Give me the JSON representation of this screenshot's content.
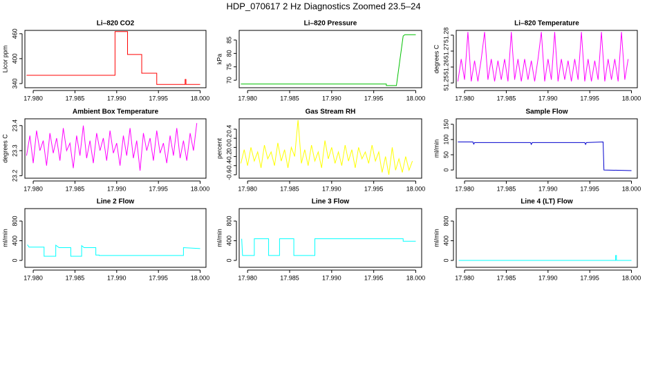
{
  "title": "HDP_070617  2 Hz Diagnostics Zoomed 23.5–24",
  "chart_data": [
    {
      "type": "line",
      "title": "Li–820 CO2",
      "ylabel": "Licor ppm",
      "color": "#ff0000",
      "x": [
        17.9792,
        17.9898,
        17.9898,
        17.9913,
        17.9913,
        17.993,
        17.993,
        17.9948,
        17.9948,
        17.9982,
        17.9982,
        17.9983,
        17.9983,
        18.0
      ],
      "values": [
        360,
        360,
        465,
        465,
        410,
        410,
        365,
        365,
        338,
        338,
        350,
        350,
        338,
        338
      ],
      "xlim": [
        17.979,
        18.0007
      ],
      "xticks": [
        {
          "value": 17.98,
          "label": "17.980"
        },
        17.985,
        {
          "value": 17.99,
          "label": "17.990"
        },
        17.995,
        {
          "value": 18,
          "label": "18.000"
        }
      ],
      "ylim": [
        330,
        468
      ],
      "yticks": [
        340,
        400,
        460
      ]
    },
    {
      "type": "line",
      "title": "Li–820 Pressure",
      "ylabel": "kPa",
      "color": "#00c000",
      "x": [
        17.9792,
        17.9965,
        17.9965,
        17.9977,
        17.9985,
        17.9987,
        18.0
      ],
      "values": [
        68.6,
        68.6,
        68.0,
        68.0,
        86.5,
        87,
        87
      ],
      "xlim": [
        17.979,
        18.0007
      ],
      "xticks": [
        {
          "value": 17.98,
          "label": "17.980"
        },
        17.985,
        {
          "value": 17.99,
          "label": "17.990"
        },
        17.995,
        {
          "value": 18,
          "label": "18.000"
        }
      ],
      "ylim": [
        67.2,
        88.6
      ],
      "yticks": [
        70,
        75,
        80,
        85
      ]
    },
    {
      "type": "line",
      "title": "Li–820 Temperature",
      "ylabel": "degrees C",
      "color": "#ff00ff",
      "x": [
        17.9792,
        17.9796,
        17.98,
        17.9804,
        17.9808,
        17.9812,
        17.9816,
        17.982,
        17.9824,
        17.9828,
        17.9832,
        17.9836,
        17.984,
        17.9844,
        17.9848,
        17.9852,
        17.9856,
        17.986,
        17.9864,
        17.9868,
        17.9872,
        17.9876,
        17.988,
        17.9884,
        17.9888,
        17.9892,
        17.9896,
        17.99,
        17.9904,
        17.9908,
        17.9912,
        17.9916,
        17.992,
        17.9924,
        17.9928,
        17.9932,
        17.9936,
        17.994,
        17.9944,
        17.9948,
        17.9952,
        17.9956,
        17.996,
        17.9964,
        17.9968,
        17.9972,
        17.9976,
        17.998,
        17.9984,
        17.9988,
        17.9992,
        17.9996
      ],
      "values": [
        51.251,
        51.265,
        51.252,
        51.282,
        51.251,
        51.264,
        51.251,
        51.265,
        51.282,
        51.252,
        51.265,
        51.251,
        51.264,
        51.252,
        51.265,
        51.251,
        51.282,
        51.252,
        51.265,
        51.251,
        51.265,
        51.252,
        51.264,
        51.251,
        51.265,
        51.282,
        51.251,
        51.265,
        51.252,
        51.282,
        51.251,
        51.265,
        51.252,
        51.264,
        51.251,
        51.265,
        51.252,
        51.282,
        51.251,
        51.265,
        51.251,
        51.264,
        51.252,
        51.282,
        51.251,
        51.265,
        51.252,
        51.265,
        51.251,
        51.282,
        51.252,
        51.265
      ],
      "xlim": [
        17.979,
        18.0007
      ],
      "xticks": [
        {
          "value": 17.98,
          "label": "17.980"
        },
        17.985,
        {
          "value": 17.99,
          "label": "17.990"
        },
        17.995,
        {
          "value": 18,
          "label": "18.000"
        }
      ],
      "ylim": [
        51.247,
        51.283
      ],
      "yticks": [
        51.25,
        51.26,
        51.27,
        51.28
      ]
    },
    {
      "type": "line",
      "title": "Ambient Box Temperature",
      "ylabel": "degrees C",
      "color": "#ff00ff",
      "x": [
        17.9792,
        17.9796,
        17.98,
        17.9804,
        17.9808,
        17.9812,
        17.9816,
        17.982,
        17.9824,
        17.9828,
        17.9832,
        17.9836,
        17.984,
        17.9844,
        17.9848,
        17.9852,
        17.9856,
        17.986,
        17.9864,
        17.9868,
        17.9872,
        17.9876,
        17.988,
        17.9884,
        17.9888,
        17.9892,
        17.9896,
        17.99,
        17.9904,
        17.9908,
        17.9912,
        17.9916,
        17.992,
        17.9924,
        17.9928,
        17.9932,
        17.9936,
        17.994,
        17.9944,
        17.9948,
        17.9952,
        17.9956,
        17.996,
        17.9964,
        17.9968,
        17.9972,
        17.9976,
        17.998,
        17.9984,
        17.9988,
        17.9992,
        17.9996
      ],
      "values": [
        23.28,
        23.36,
        23.25,
        23.38,
        23.3,
        23.34,
        23.24,
        23.37,
        23.29,
        23.35,
        23.26,
        23.39,
        23.3,
        23.33,
        23.23,
        23.36,
        23.28,
        23.4,
        23.27,
        23.34,
        23.25,
        23.37,
        23.3,
        23.35,
        23.26,
        23.38,
        23.29,
        23.33,
        23.24,
        23.36,
        23.28,
        23.39,
        23.27,
        23.34,
        23.22,
        23.37,
        23.3,
        23.35,
        23.26,
        23.38,
        23.29,
        23.33,
        23.25,
        23.36,
        23.28,
        23.39,
        23.27,
        23.34,
        23.26,
        23.37,
        23.3,
        23.41
      ],
      "xlim": [
        17.979,
        18.0007
      ],
      "xticks": [
        {
          "value": 17.98,
          "label": "17.980"
        },
        17.985,
        {
          "value": 17.99,
          "label": "17.990"
        },
        17.995,
        {
          "value": 18,
          "label": "18.000"
        }
      ],
      "ylim": [
        23.19,
        23.427
      ],
      "yticks": [
        23.2,
        23.3,
        23.4
      ]
    },
    {
      "type": "line",
      "title": "Gas Stream RH",
      "ylabel": "percent",
      "color": "#ffff00",
      "x": [
        17.9792,
        17.9796,
        17.98,
        17.9804,
        17.9808,
        17.9812,
        17.9816,
        17.982,
        17.9824,
        17.9828,
        17.9832,
        17.9836,
        17.984,
        17.9844,
        17.9848,
        17.9852,
        17.9856,
        17.986,
        17.9864,
        17.9868,
        17.9872,
        17.9876,
        17.988,
        17.9884,
        17.9888,
        17.9892,
        17.9896,
        17.99,
        17.9904,
        17.9908,
        17.9912,
        17.9916,
        17.992,
        17.9924,
        17.9928,
        17.9932,
        17.9936,
        17.994,
        17.9944,
        17.9948,
        17.9952,
        17.9956,
        17.996,
        17.9964,
        17.9968,
        17.9972,
        17.9976,
        17.998,
        17.9984,
        17.9988,
        17.9992,
        17.9996
      ],
      "values": [
        -0.35,
        -0.05,
        -0.4,
        0.0,
        -0.3,
        -0.1,
        -0.45,
        0.05,
        -0.25,
        -0.1,
        -0.4,
        0.1,
        -0.3,
        -0.05,
        -0.45,
        0.0,
        -0.2,
        0.6,
        -0.35,
        -0.05,
        -0.4,
        0.05,
        -0.3,
        -0.1,
        -0.45,
        0.15,
        -0.25,
        0.0,
        -0.35,
        -0.1,
        -0.4,
        0.05,
        -0.3,
        -0.05,
        -0.45,
        0.0,
        -0.25,
        -0.1,
        -0.35,
        0.05,
        -0.3,
        -0.1,
        -0.55,
        -0.2,
        -0.6,
        0.0,
        -0.5,
        -0.25,
        -0.55,
        -0.2,
        -0.5,
        -0.3
      ],
      "xlim": [
        17.979,
        18.0007
      ],
      "xticks": [
        {
          "value": 17.98,
          "label": "17.980"
        },
        17.985,
        {
          "value": 17.99,
          "label": "17.990"
        },
        17.995,
        {
          "value": 18,
          "label": "18.000"
        }
      ],
      "ylim": [
        -0.676,
        0.627
      ],
      "yticks": [
        -0.6,
        -0.4,
        -0.2,
        {
          "value": 0,
          "label": "0.0"
        },
        0.2,
        0.4
      ]
    },
    {
      "type": "line",
      "title": "Sample Flow",
      "ylabel": "ml/min",
      "color": "#0000cd",
      "x": [
        17.9792,
        17.981,
        17.9811,
        17.9812,
        17.9879,
        17.988,
        17.9881,
        17.9944,
        17.9945,
        17.9946,
        17.9966,
        17.9967,
        18.0
      ],
      "values": [
        92,
        92,
        85,
        90,
        90,
        84,
        90,
        90,
        84,
        90,
        92,
        0,
        -2
      ],
      "xlim": [
        17.979,
        18.0007
      ],
      "xticks": [
        {
          "value": 17.98,
          "label": "17.980"
        },
        17.985,
        {
          "value": 17.99,
          "label": "17.990"
        },
        17.995,
        {
          "value": 18,
          "label": "18.000"
        }
      ],
      "ylim": [
        -27,
        168
      ],
      "yticks": [
        0,
        50,
        100,
        150
      ]
    },
    {
      "type": "line",
      "title": "Line 2 Flow",
      "ylabel": "ml/min",
      "color": "#00ffff",
      "x": [
        17.9793,
        17.9795,
        17.9813,
        17.9813,
        17.9827,
        17.9827,
        17.9831,
        17.9845,
        17.9845,
        17.9858,
        17.9858,
        17.9861,
        17.9875,
        17.9875,
        17.9879,
        17.9879,
        17.998,
        17.998,
        18.0
      ],
      "values": [
        320,
        270,
        270,
        85,
        85,
        310,
        260,
        260,
        85,
        85,
        300,
        260,
        260,
        110,
        110,
        100,
        100,
        260,
        240
      ],
      "xlim": [
        17.979,
        18.0007
      ],
      "xticks": [
        {
          "value": 17.98,
          "label": "17.980"
        },
        17.985,
        {
          "value": 17.99,
          "label": "17.990"
        },
        17.995,
        {
          "value": 18,
          "label": "18.000"
        }
      ],
      "ylim": [
        -140,
        1053
      ],
      "yticks": [
        0,
        400,
        800
      ]
    },
    {
      "type": "line",
      "title": "Line 3 Flow",
      "ylabel": "ml/min",
      "color": "#00ffff",
      "x": [
        17.9793,
        17.9794,
        17.9808,
        17.9808,
        17.9825,
        17.9825,
        17.9838,
        17.9838,
        17.9855,
        17.9855,
        17.988,
        17.988,
        17.9985,
        17.9985,
        18.0
      ],
      "values": [
        440,
        100,
        100,
        440,
        440,
        100,
        100,
        440,
        440,
        100,
        100,
        440,
        440,
        390,
        390
      ],
      "xlim": [
        17.979,
        18.0007
      ],
      "xticks": [
        {
          "value": 17.98,
          "label": "17.980"
        },
        17.985,
        {
          "value": 17.99,
          "label": "17.990"
        },
        17.995,
        {
          "value": 18,
          "label": "18.000"
        }
      ],
      "ylim": [
        -140,
        1053
      ],
      "yticks": [
        0,
        400,
        800
      ]
    },
    {
      "type": "line",
      "title": "Line 4 (LT) Flow",
      "ylabel": "ml/min",
      "color": "#00ffff",
      "x": [
        17.9793,
        17.9981,
        17.9981,
        17.9982,
        17.9982,
        18.0
      ],
      "values": [
        0,
        0,
        100,
        100,
        0,
        0
      ],
      "xlim": [
        17.979,
        18.0007
      ],
      "xticks": [
        {
          "value": 17.98,
          "label": "17.980"
        },
        17.985,
        {
          "value": 17.99,
          "label": "17.990"
        },
        17.995,
        {
          "value": 18,
          "label": "18.000"
        }
      ],
      "ylim": [
        -140,
        1053
      ],
      "yticks": [
        0,
        400,
        800
      ]
    }
  ]
}
